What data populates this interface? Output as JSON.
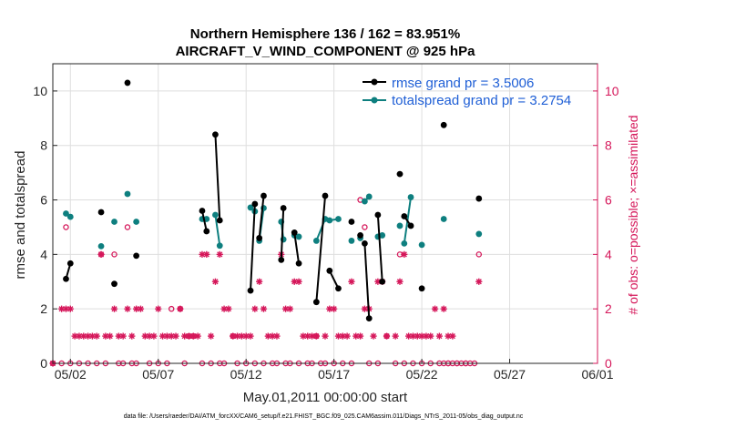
{
  "chart_data": {
    "type": "line",
    "title_line1": "Northern Hemisphere 136 / 162 = 83.951%",
    "title_line2": "AIRCRAFT_V_WIND_COMPONENT @ 925 hPa",
    "xlabel": "May.01,2011 00:00:00 start",
    "ylabel_left": "rmse and totalspread",
    "ylabel_right": "# of obs: o=possible; ×=assimilated",
    "footer": "data file: /Users/raeder/DAI/ATM_forcXX/CAM6_setup/f.e21.FHIST_BGC.f09_025.CAM6assim.011/Diags_NTrS_2011-05/obs_diag_output.nc",
    "xlim": [
      0.5,
      31.5
    ],
    "ylim_left": [
      0,
      11
    ],
    "ylim_right": [
      0,
      11
    ],
    "x_ticks": [
      1.5,
      6.5,
      11.5,
      16.5,
      21.5,
      26.5,
      31.5
    ],
    "x_tick_labels": [
      "05/02",
      "05/07",
      "05/12",
      "05/17",
      "05/22",
      "05/27",
      "06/01"
    ],
    "y_ticks_left": [
      0,
      2,
      4,
      6,
      8,
      10
    ],
    "y_ticks_right": [
      0,
      2,
      4,
      6,
      8,
      10
    ],
    "grid": true,
    "colors": {
      "rmse": "#000000",
      "spread": "#0e7f7f",
      "obs": "#d5175a",
      "legend_text": "#1f5fd6"
    },
    "legend": {
      "location": "top-right",
      "rmse_label": "rmse grand pr = 3.5006",
      "spread_label": "totalspread grand pr = 3.2754"
    },
    "series": [
      {
        "name": "rmse",
        "points": [
          [
            1.25,
            3.1
          ],
          [
            1.5,
            3.67
          ],
          [
            3.25,
            5.55
          ],
          [
            4.0,
            2.92
          ],
          [
            4.75,
            10.3
          ],
          [
            5.25,
            3.95
          ],
          [
            9.0,
            5.6
          ],
          [
            9.25,
            4.85
          ],
          [
            9.75,
            8.4
          ],
          [
            10.0,
            5.25
          ],
          [
            11.75,
            2.67
          ],
          [
            12.0,
            5.85
          ],
          [
            12.25,
            4.6
          ],
          [
            12.5,
            6.15
          ],
          [
            13.5,
            3.8
          ],
          [
            13.625,
            5.7
          ],
          [
            14.25,
            4.8
          ],
          [
            14.5,
            3.67
          ],
          [
            15.5,
            2.25
          ],
          [
            16.0,
            6.15
          ],
          [
            16.25,
            3.4
          ],
          [
            16.75,
            2.75
          ],
          [
            17.5,
            5.2
          ],
          [
            18.0,
            4.7
          ],
          [
            18.25,
            4.4
          ],
          [
            18.5,
            1.65
          ],
          [
            19.0,
            5.45
          ],
          [
            19.25,
            3.0
          ],
          [
            20.25,
            6.95
          ],
          [
            20.5,
            5.4
          ],
          [
            20.875,
            5.05
          ],
          [
            21.5,
            2.75
          ],
          [
            22.75,
            8.75
          ],
          [
            24.75,
            6.05
          ]
        ]
      },
      {
        "name": "totalspread",
        "points": [
          [
            1.25,
            5.5
          ],
          [
            1.5,
            5.38
          ],
          [
            3.25,
            4.3
          ],
          [
            4.0,
            5.2
          ],
          [
            4.75,
            6.22
          ],
          [
            5.25,
            5.2
          ],
          [
            9.0,
            5.3
          ],
          [
            9.25,
            5.3
          ],
          [
            9.75,
            5.45
          ],
          [
            10.0,
            4.32
          ],
          [
            11.75,
            5.72
          ],
          [
            12.0,
            5.58
          ],
          [
            12.25,
            4.5
          ],
          [
            12.5,
            5.7
          ],
          [
            13.5,
            5.2
          ],
          [
            13.625,
            4.55
          ],
          [
            14.25,
            4.7
          ],
          [
            14.5,
            4.65
          ],
          [
            15.5,
            4.5
          ],
          [
            16.0,
            5.3
          ],
          [
            16.25,
            5.25
          ],
          [
            16.75,
            5.3
          ],
          [
            17.5,
            4.5
          ],
          [
            18.0,
            4.6
          ],
          [
            18.25,
            5.95
          ],
          [
            18.5,
            6.12
          ],
          [
            19.0,
            4.65
          ],
          [
            19.25,
            4.7
          ],
          [
            20.25,
            5.05
          ],
          [
            20.5,
            4.4
          ],
          [
            20.875,
            6.1
          ],
          [
            21.5,
            4.35
          ],
          [
            22.75,
            5.3
          ],
          [
            24.75,
            4.75
          ]
        ]
      }
    ],
    "segments": [
      [
        0,
        1
      ],
      [
        6,
        7
      ],
      [
        8,
        9
      ],
      [
        10,
        11
      ],
      [
        12,
        13
      ],
      [
        14,
        15
      ],
      [
        16,
        17
      ],
      [
        18,
        19
      ],
      [
        20,
        21
      ],
      [
        24,
        25
      ],
      [
        26,
        27
      ],
      [
        29,
        30
      ]
    ],
    "obs_assimilated": [
      [
        0.5,
        0
      ],
      [
        1.0,
        2
      ],
      [
        1.25,
        2
      ],
      [
        1.5,
        2
      ],
      [
        1.75,
        1
      ],
      [
        2.0,
        1
      ],
      [
        2.25,
        1
      ],
      [
        2.5,
        1
      ],
      [
        2.75,
        1
      ],
      [
        3.0,
        1
      ],
      [
        3.25,
        4
      ],
      [
        3.5,
        1
      ],
      [
        3.75,
        1
      ],
      [
        4.0,
        2
      ],
      [
        4.25,
        1
      ],
      [
        4.5,
        1
      ],
      [
        4.75,
        2
      ],
      [
        5.0,
        1
      ],
      [
        5.25,
        2
      ],
      [
        5.5,
        2
      ],
      [
        5.75,
        1
      ],
      [
        6.0,
        1
      ],
      [
        6.25,
        1
      ],
      [
        6.5,
        2
      ],
      [
        6.75,
        1
      ],
      [
        7.0,
        1
      ],
      [
        7.25,
        1
      ],
      [
        7.5,
        1
      ],
      [
        7.75,
        2
      ],
      [
        8.0,
        1
      ],
      [
        8.25,
        1
      ],
      [
        8.5,
        1
      ],
      [
        8.75,
        1
      ],
      [
        9.0,
        4
      ],
      [
        9.25,
        4
      ],
      [
        9.5,
        1
      ],
      [
        9.75,
        3
      ],
      [
        10.0,
        4
      ],
      [
        10.25,
        2
      ],
      [
        10.5,
        2
      ],
      [
        10.75,
        1
      ],
      [
        11.0,
        1
      ],
      [
        11.25,
        1
      ],
      [
        11.5,
        1
      ],
      [
        11.75,
        1
      ],
      [
        12.0,
        2
      ],
      [
        12.25,
        3
      ],
      [
        12.5,
        2
      ],
      [
        12.75,
        1
      ],
      [
        13.0,
        1
      ],
      [
        13.25,
        1
      ],
      [
        13.5,
        4
      ],
      [
        13.75,
        2
      ],
      [
        14.0,
        2
      ],
      [
        14.25,
        3
      ],
      [
        14.5,
        3
      ],
      [
        14.75,
        1
      ],
      [
        15.0,
        1
      ],
      [
        15.25,
        1
      ],
      [
        15.5,
        1
      ],
      [
        16.0,
        1
      ],
      [
        16.25,
        2
      ],
      [
        16.5,
        2
      ],
      [
        16.75,
        1
      ],
      [
        17.0,
        1
      ],
      [
        17.25,
        1
      ],
      [
        17.5,
        3
      ],
      [
        17.75,
        1
      ],
      [
        18.0,
        1
      ],
      [
        18.25,
        2
      ],
      [
        18.5,
        2
      ],
      [
        18.75,
        1
      ],
      [
        19.0,
        3
      ],
      [
        19.25,
        3
      ],
      [
        19.5,
        1
      ],
      [
        20.0,
        1
      ],
      [
        20.25,
        3
      ],
      [
        20.5,
        4
      ],
      [
        20.75,
        1
      ],
      [
        21.0,
        1
      ],
      [
        21.25,
        1
      ],
      [
        21.5,
        1
      ],
      [
        21.75,
        1
      ],
      [
        22.0,
        1
      ],
      [
        22.25,
        2
      ],
      [
        22.5,
        1
      ],
      [
        22.75,
        2
      ],
      [
        23.0,
        1
      ],
      [
        23.25,
        1
      ],
      [
        24.75,
        3
      ]
    ],
    "obs_possible": [
      [
        0.5,
        0
      ],
      [
        1.0,
        0
      ],
      [
        1.25,
        5
      ],
      [
        1.5,
        0
      ],
      [
        2.0,
        0
      ],
      [
        2.5,
        0
      ],
      [
        3.0,
        0
      ],
      [
        3.25,
        4
      ],
      [
        3.5,
        0
      ],
      [
        4.0,
        4
      ],
      [
        4.25,
        0
      ],
      [
        4.5,
        0
      ],
      [
        4.75,
        5
      ],
      [
        5.0,
        0
      ],
      [
        5.25,
        0
      ],
      [
        6.0,
        0
      ],
      [
        6.5,
        0
      ],
      [
        7.0,
        0
      ],
      [
        7.25,
        2
      ],
      [
        7.75,
        2
      ],
      [
        8.0,
        0
      ],
      [
        8.25,
        1
      ],
      [
        8.5,
        1
      ],
      [
        9.0,
        0
      ],
      [
        9.5,
        0
      ],
      [
        10.0,
        0
      ],
      [
        10.25,
        0
      ],
      [
        10.75,
        1
      ],
      [
        11.0,
        0
      ],
      [
        11.5,
        0
      ],
      [
        12.0,
        0
      ],
      [
        12.5,
        0
      ],
      [
        13.0,
        0
      ],
      [
        13.25,
        0
      ],
      [
        13.75,
        0
      ],
      [
        14.0,
        0
      ],
      [
        14.5,
        0
      ],
      [
        15.0,
        0
      ],
      [
        15.25,
        0
      ],
      [
        15.5,
        1
      ],
      [
        15.75,
        0
      ],
      [
        16.0,
        0
      ],
      [
        16.5,
        0
      ],
      [
        17.0,
        0
      ],
      [
        17.5,
        0
      ],
      [
        18.0,
        6
      ],
      [
        18.25,
        5
      ],
      [
        18.5,
        0
      ],
      [
        19.0,
        0
      ],
      [
        19.5,
        1
      ],
      [
        20.0,
        0
      ],
      [
        20.25,
        4
      ],
      [
        20.5,
        0
      ],
      [
        21.0,
        0
      ],
      [
        21.5,
        0
      ],
      [
        22.0,
        0
      ],
      [
        22.5,
        0
      ],
      [
        23.0,
        0
      ],
      [
        23.5,
        0
      ],
      [
        24.0,
        0
      ],
      [
        24.75,
        4
      ]
    ],
    "obs_zero_run": [
      22.75,
      23.0,
      23.25,
      23.5,
      23.75,
      24.0,
      24.25,
      24.5
    ]
  }
}
